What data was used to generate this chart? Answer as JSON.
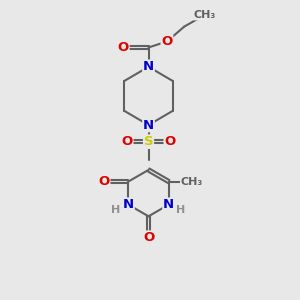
{
  "bg": "#e8e8e8",
  "bc": "#606060",
  "bw": 1.5,
  "doff": 0.055,
  "colors": {
    "O": "#dd0000",
    "N": "#0000cc",
    "S": "#cccc00",
    "C": "#606060",
    "H": "#909090"
  },
  "fs": 9.5,
  "fs2": 8.0,
  "xlim": [
    0,
    10
  ],
  "ylim": [
    0,
    10
  ]
}
